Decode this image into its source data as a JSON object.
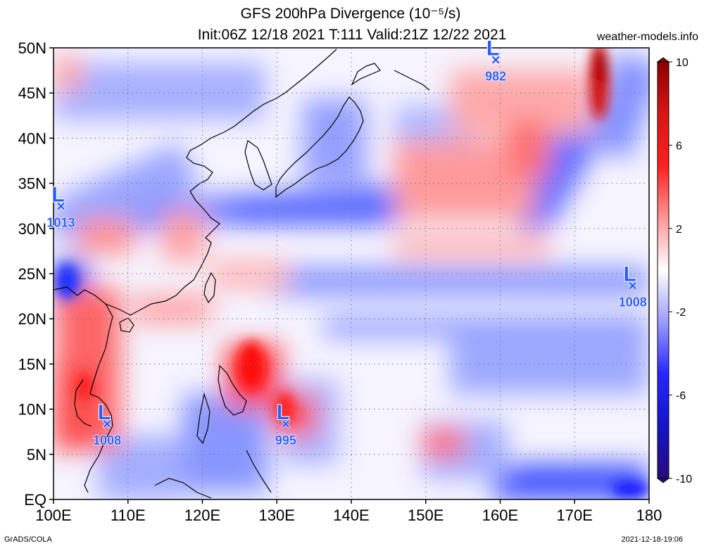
{
  "title": {
    "line1": "GFS 200hPa Divergence (10⁻⁵/s)",
    "line2": "Init:06Z 12/18 2021 T:111 Valid:21Z 12/22 2021"
  },
  "site": "weather-models.info",
  "footer": {
    "left": "GrADS/COLA",
    "right": "2021-12-18-19:06"
  },
  "map": {
    "lon_range": [
      100,
      180
    ],
    "lat_range": [
      0,
      50
    ],
    "lon_ticks": [
      {
        "value": 100,
        "label": "100E"
      },
      {
        "value": 110,
        "label": "110E"
      },
      {
        "value": 120,
        "label": "120E"
      },
      {
        "value": 130,
        "label": "130E"
      },
      {
        "value": 140,
        "label": "140E"
      },
      {
        "value": 150,
        "label": "150E"
      },
      {
        "value": 160,
        "label": "160E"
      },
      {
        "value": 170,
        "label": "170E"
      },
      {
        "value": 180,
        "label": "180"
      }
    ],
    "lat_ticks": [
      {
        "value": 0,
        "label": "EQ"
      },
      {
        "value": 5,
        "label": "5N"
      },
      {
        "value": 10,
        "label": "10N"
      },
      {
        "value": 15,
        "label": "15N"
      },
      {
        "value": 20,
        "label": "20N"
      },
      {
        "value": 25,
        "label": "25N"
      },
      {
        "value": 30,
        "label": "30N"
      },
      {
        "value": 35,
        "label": "35N"
      },
      {
        "value": 40,
        "label": "40N"
      },
      {
        "value": 45,
        "label": "45N"
      },
      {
        "value": 50,
        "label": "50N"
      }
    ],
    "pressure_lows": [
      {
        "symbol": "L",
        "lon": 101.0,
        "lat": 32.5,
        "pressure": "1013"
      },
      {
        "symbol": "L",
        "lon": 159.4,
        "lat": 48.7,
        "pressure": "982"
      },
      {
        "symbol": "L",
        "lon": 107.2,
        "lat": 8.4,
        "pressure": "1008"
      },
      {
        "symbol": "L",
        "lon": 131.2,
        "lat": 8.4,
        "pressure": "995"
      },
      {
        "symbol": "L",
        "lon": 177.8,
        "lat": 23.7,
        "pressure": "1008"
      }
    ],
    "colorbar": {
      "ticks": [
        {
          "value": 10,
          "label": "10"
        },
        {
          "value": 6,
          "label": "6"
        },
        {
          "value": 2,
          "label": "2"
        },
        {
          "value": -2,
          "label": "-2"
        },
        {
          "value": -6,
          "label": "-6"
        },
        {
          "value": -10,
          "label": "-10"
        }
      ],
      "colors": {
        "max": "#8b0000",
        "pos": "#ff1a1a",
        "neutral": "#ffffff",
        "neg": "#1a1aff",
        "min": "#2a0a7a"
      }
    }
  }
}
